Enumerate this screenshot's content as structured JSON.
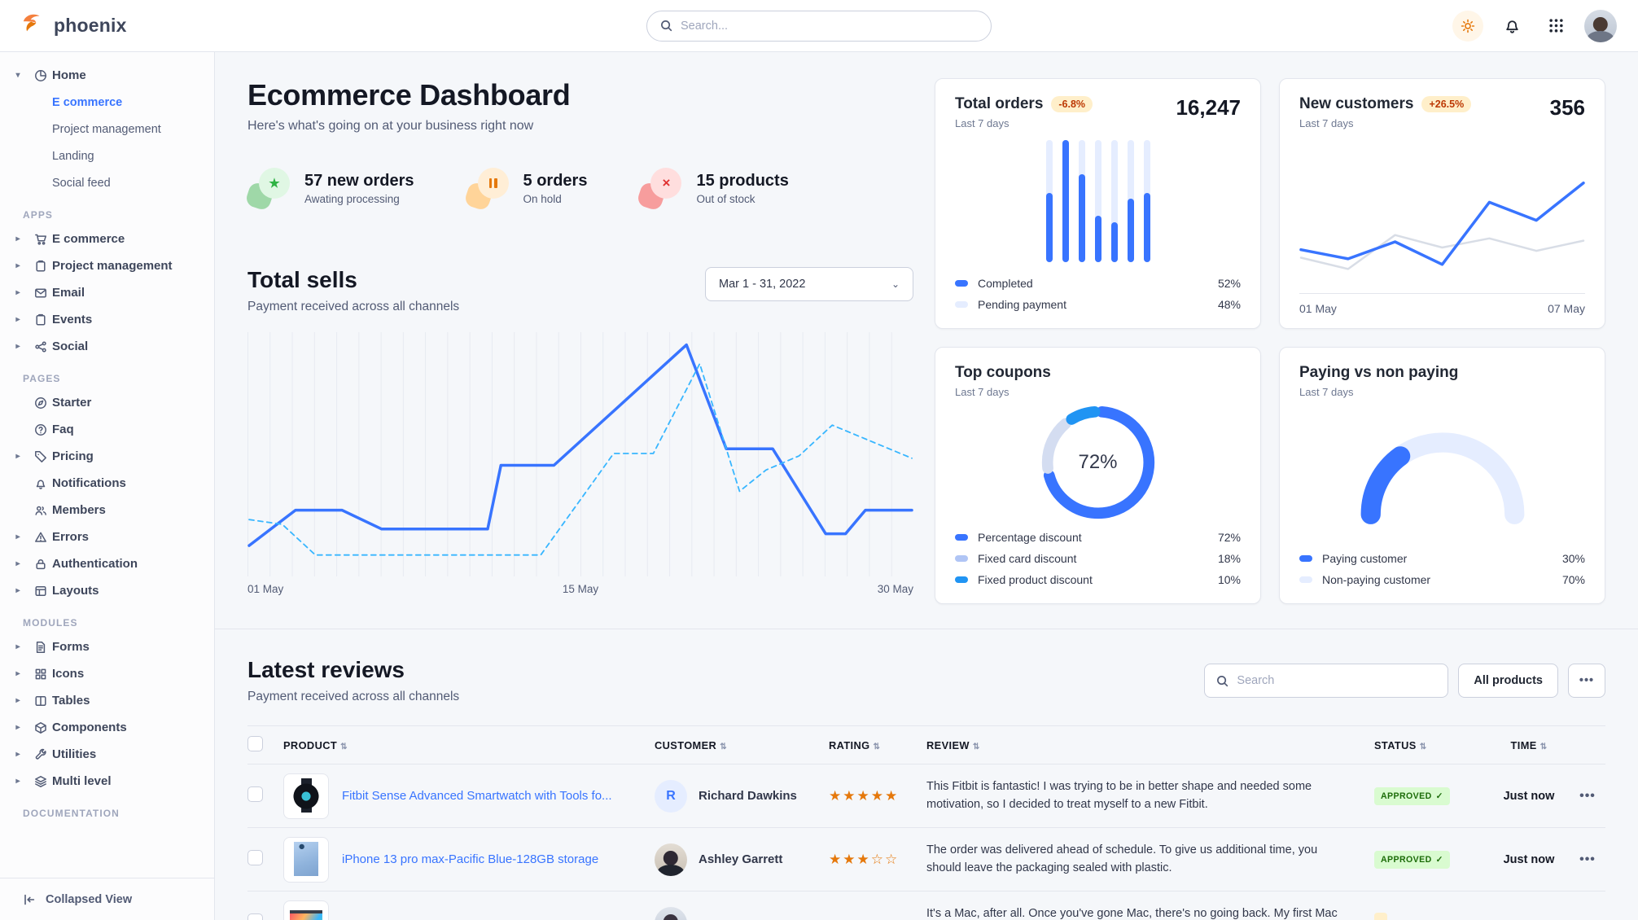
{
  "colors": {
    "primary": "#3874ff",
    "info": "#38b6ff",
    "warning_text": "#bc3803",
    "success_text": "#1c6c09"
  },
  "navbar": {
    "brand": "phoenix",
    "search_placeholder": "Search...",
    "icons": [
      "sun-icon",
      "bell-icon",
      "apps-grid-icon",
      "user-avatar"
    ]
  },
  "sidebar": {
    "sections": [
      {
        "label": "",
        "items": [
          {
            "icon": "pie-chart",
            "label": "Home",
            "caret": "down",
            "children": [
              {
                "label": "E commerce",
                "active": true
              },
              {
                "label": "Project management",
                "active": false
              },
              {
                "label": "Landing",
                "active": false
              },
              {
                "label": "Social feed",
                "active": false
              }
            ]
          }
        ]
      },
      {
        "label": "APPS",
        "items": [
          {
            "icon": "cart",
            "label": "E commerce",
            "caret": "right"
          },
          {
            "icon": "clipboard",
            "label": "Project management",
            "caret": "right"
          },
          {
            "icon": "mail",
            "label": "Email",
            "caret": "right"
          },
          {
            "icon": "clipboard",
            "label": "Events",
            "caret": "right"
          },
          {
            "icon": "share",
            "label": "Social",
            "caret": "right"
          }
        ]
      },
      {
        "label": "PAGES",
        "items": [
          {
            "icon": "compass",
            "label": "Starter",
            "caret": ""
          },
          {
            "icon": "help-circle",
            "label": "Faq",
            "caret": ""
          },
          {
            "icon": "tag",
            "label": "Pricing",
            "caret": "right"
          },
          {
            "icon": "bell",
            "label": "Notifications",
            "caret": ""
          },
          {
            "icon": "users",
            "label": "Members",
            "caret": ""
          },
          {
            "icon": "alert-triangle",
            "label": "Errors",
            "caret": "right"
          },
          {
            "icon": "lock",
            "label": "Authentication",
            "caret": "right"
          },
          {
            "icon": "layout",
            "label": "Layouts",
            "caret": "right"
          }
        ]
      },
      {
        "label": "MODULES",
        "items": [
          {
            "icon": "file-text",
            "label": "Forms",
            "caret": "right"
          },
          {
            "icon": "grid",
            "label": "Icons",
            "caret": "right"
          },
          {
            "icon": "columns",
            "label": "Tables",
            "caret": "right"
          },
          {
            "icon": "box",
            "label": "Components",
            "caret": "right"
          },
          {
            "icon": "tool",
            "label": "Utilities",
            "caret": "right"
          },
          {
            "icon": "layers",
            "label": "Multi level",
            "caret": "right"
          }
        ]
      },
      {
        "label": "DOCUMENTATION",
        "items": []
      }
    ],
    "footer": {
      "label": "Collapsed View",
      "icon": "collapse-left"
    }
  },
  "header": {
    "title": "Ecommerce Dashboard",
    "subtitle": "Here's what's going on at your business right now",
    "stats": [
      {
        "value_label": "57 new orders",
        "sub": "Awating processing",
        "color": "green",
        "icon": "star"
      },
      {
        "value_label": "5 orders",
        "sub": "On hold",
        "color": "orange",
        "icon": "pause"
      },
      {
        "value_label": "15 products",
        "sub": "Out of stock",
        "color": "red",
        "icon": "x"
      }
    ]
  },
  "total_sells": {
    "title": "Total sells",
    "subtitle": "Payment received across all channels",
    "range": "Mar 1 - 31, 2022",
    "x_labels": [
      "01 May",
      "15 May",
      "30 May"
    ],
    "chart_data": {
      "type": "line",
      "xlabel": "date (May)",
      "ylabel": "",
      "grid": "vertical",
      "series": [
        {
          "name": "current",
          "color": "#3874ff",
          "width": 3.5,
          "dash": "",
          "points": [
            [
              0,
              11
            ],
            [
              7,
              26
            ],
            [
              14,
              26
            ],
            [
              20,
              18
            ],
            [
              36,
              18
            ],
            [
              38,
              45
            ],
            [
              46,
              45
            ],
            [
              66,
              96
            ],
            [
              72,
              52
            ],
            [
              79,
              52
            ],
            [
              87,
              16
            ],
            [
              90,
              16
            ],
            [
              93,
              26
            ],
            [
              100,
              26
            ]
          ]
        },
        {
          "name": "previous",
          "color": "#38b6ff",
          "width": 1.8,
          "dash": "6 5",
          "points": [
            [
              0,
              22
            ],
            [
              5,
              20
            ],
            [
              10,
              7
            ],
            [
              44,
              7
            ],
            [
              55,
              50
            ],
            [
              61,
              50
            ],
            [
              68,
              88
            ],
            [
              74,
              34
            ],
            [
              78,
              43
            ],
            [
              83,
              49
            ],
            [
              88,
              62
            ],
            [
              100,
              48
            ]
          ]
        }
      ]
    }
  },
  "cards": {
    "total_orders": {
      "title": "Total orders",
      "badge": "-6.8%",
      "period": "Last 7 days",
      "value": "16,247",
      "legend": [
        {
          "label": "Completed",
          "value": "52%",
          "color": "#3874ff"
        },
        {
          "label": "Pending payment",
          "value": "48%",
          "color": "#e5edff"
        }
      ],
      "chart_data": {
        "type": "bar",
        "values": [
          57,
          100,
          72,
          38,
          33,
          52,
          57
        ],
        "track": 100,
        "bar_color": "#3874ff",
        "track_color": "#e5edff"
      }
    },
    "new_customers": {
      "title": "New customers",
      "badge": "+26.5%",
      "period": "Last 7 days",
      "value": "356",
      "x_labels": [
        "01 May",
        "07 May"
      ],
      "chart_data": {
        "type": "line",
        "series": [
          {
            "name": "previous",
            "color": "#d8dde6",
            "width": 2.5,
            "dash": "",
            "points": [
              [
                0,
                27
              ],
              [
                16.7,
                17
              ],
              [
                33.3,
                47
              ],
              [
                50,
                36
              ],
              [
                66.7,
                44
              ],
              [
                83.3,
                33
              ],
              [
                100,
                42
              ]
            ]
          },
          {
            "name": "current",
            "color": "#3874ff",
            "width": 3.5,
            "dash": "",
            "points": [
              [
                0,
                34
              ],
              [
                16.7,
                26
              ],
              [
                33.3,
                41
              ],
              [
                50,
                21
              ],
              [
                66.7,
                76
              ],
              [
                83.3,
                60
              ],
              [
                100,
                93
              ]
            ]
          }
        ]
      }
    },
    "top_coupons": {
      "title": "Top coupons",
      "period": "Last 7 days",
      "center_label": "72%",
      "legend": [
        {
          "label": "Percentage discount",
          "value": "72%",
          "color": "#3874ff"
        },
        {
          "label": "Fixed card discount",
          "value": "18%",
          "color": "#b0c5f5"
        },
        {
          "label": "Fixed product discount",
          "value": "10%",
          "color": "#2094f3"
        }
      ],
      "chart_data": {
        "type": "donut",
        "slices": [
          72,
          18,
          10
        ],
        "colors": [
          "#3874ff",
          "#d4ddf1",
          "#2094f3"
        ]
      }
    },
    "paying": {
      "title": "Paying vs non paying",
      "period": "Last 7 days",
      "legend": [
        {
          "label": "Paying customer",
          "value": "30%",
          "color": "#3874ff"
        },
        {
          "label": "Non-paying customer",
          "value": "70%",
          "color": "#e5edff"
        }
      ],
      "chart_data": {
        "type": "gauge",
        "value": 30,
        "color": "#3874ff",
        "track_color": "#e5edff"
      }
    }
  },
  "reviews": {
    "title": "Latest reviews",
    "subtitle": "Payment received across all channels",
    "search_placeholder": "Search",
    "filter_button": "All products",
    "more_button": "...",
    "sort_icon": "⇅",
    "check_icon": "✓",
    "columns": [
      "PRODUCT",
      "CUSTOMER",
      "RATING",
      "REVIEW",
      "STATUS",
      "TIME"
    ],
    "rows": [
      {
        "product": "Fitbit Sense Advanced Smartwatch with Tools fo...",
        "thumb": "watch",
        "customer": "Richard Dawkins",
        "avatar": "initial",
        "avatar_initial": "R",
        "rating": 5,
        "stars": "★★★★★",
        "review": "This Fitbit is fantastic! I was trying to be in better shape and needed some motivation, so I decided to treat myself to a new Fitbit.",
        "status": "APPROVED",
        "status_type": "success",
        "time": "Just now",
        "more": "..."
      },
      {
        "product": "iPhone 13 pro max-Pacific Blue-128GB storage",
        "thumb": "iphone",
        "customer": "Ashley Garrett",
        "avatar": "photo-b",
        "avatar_initial": "",
        "rating": 3,
        "stars": "★★★☆☆",
        "review": "The order was delivered ahead of schedule. To give us additional time, you should leave the packaging sealed with plastic.",
        "status": "APPROVED",
        "status_type": "success",
        "time": "Just now",
        "more": "..."
      },
      {
        "product": "",
        "thumb": "imac",
        "customer": "",
        "avatar": "photo-c",
        "avatar_initial": "",
        "rating": 0,
        "stars": "",
        "review": "It's a Mac, after all. Once you've gone Mac, there's no going back. My first Mac lasted",
        "status": "",
        "status_type": "warning",
        "time": "",
        "more": ""
      }
    ]
  }
}
